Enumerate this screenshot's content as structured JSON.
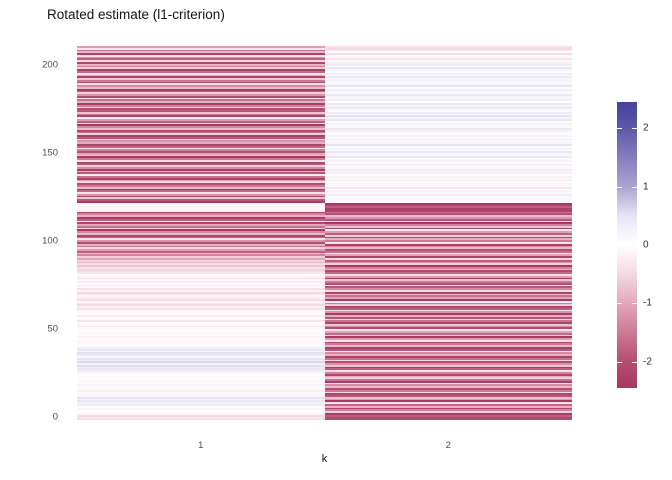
{
  "title": "Rotated estimate (l1-criterion)",
  "x_axis": {
    "label": "k",
    "ticks": [
      "1",
      "2"
    ]
  },
  "y_axis": {
    "ticks": [
      {
        "label": "0",
        "value": 0
      },
      {
        "label": "50",
        "value": 50
      },
      {
        "label": "100",
        "value": 100
      },
      {
        "label": "150",
        "value": 150
      },
      {
        "label": "200",
        "value": 200
      }
    ]
  },
  "legend": {
    "ticks": [
      {
        "label": "2",
        "value": 2
      },
      {
        "label": "1",
        "value": 1
      },
      {
        "label": "0",
        "value": 0
      },
      {
        "label": "-1",
        "value": -1
      },
      {
        "label": "-2",
        "value": -2
      }
    ],
    "domain": [
      -2.45,
      2.45
    ]
  },
  "color_scale": {
    "anchors": [
      {
        "value": -2.45,
        "color": "#A63663"
      },
      {
        "value": -2.0,
        "color": "#B44E72"
      },
      {
        "value": -1.0,
        "color": "#E2A6BA"
      },
      {
        "value": -0.5,
        "color": "#F4D9E2"
      },
      {
        "value": 0.0,
        "color": "#FFFFFF"
      },
      {
        "value": 0.5,
        "color": "#E6E4F4"
      },
      {
        "value": 1.0,
        "color": "#ACA3D1"
      },
      {
        "value": 2.0,
        "color": "#5F58A9"
      },
      {
        "value": 2.45,
        "color": "#45419B"
      }
    ]
  },
  "chart_data": {
    "type": "heatmap",
    "title": "Rotated estimate (l1-criterion)",
    "xlabel": "k",
    "ylabel": "",
    "categories_x": [
      "1",
      "2"
    ],
    "n_rows": 210,
    "ylim": [
      0,
      210
    ],
    "grid": false,
    "legend_position": "right",
    "colorbar": {
      "min": -2.45,
      "max": 2.45,
      "ticks": [
        -2,
        -1,
        0,
        1,
        2
      ]
    },
    "series": [
      {
        "name": "k=1",
        "values_bottom_to_top": [
          -0.45,
          -0.3,
          -0.5,
          -0.15,
          -0.05,
          0.1,
          -0.2,
          0.05,
          0.35,
          0.3,
          0.45,
          0.2,
          0.5,
          0.15,
          -0.1,
          0.05,
          -0.25,
          0.1,
          -0.05,
          0.2,
          0.05,
          -0.15,
          0.1,
          -0.05,
          0.15,
          0.02,
          -0.1,
          0.3,
          0.45,
          0.35,
          0.55,
          0.25,
          0.6,
          0.3,
          0.5,
          0.15,
          0.4,
          0.55,
          0.2,
          0.45,
          0.3,
          0.1,
          -0.05,
          0.15,
          -0.1,
          0.05,
          -0.2,
          0.02,
          -0.12,
          0.08,
          -0.05,
          0.12,
          -0.3,
          -0.15,
          0.05,
          -0.35,
          -0.1,
          0.08,
          -0.25,
          -0.05,
          0.1,
          -0.15,
          -0.4,
          -0.2,
          -0.5,
          -0.3,
          -0.15,
          -0.45,
          -0.25,
          -0.1,
          -0.35,
          -0.5,
          -0.2,
          -0.4,
          -0.1,
          -0.3,
          -0.05,
          -0.25,
          -0.15,
          -0.4,
          -0.2,
          -0.05,
          -0.3,
          -0.5,
          -0.6,
          -0.35,
          -0.7,
          -0.45,
          -0.8,
          -0.55,
          -1.0,
          -0.6,
          -1.4,
          -0.8,
          -1.8,
          -1.1,
          -0.5,
          -1.5,
          -0.9,
          -2.0,
          -1.2,
          -0.4,
          -1.7,
          -2.2,
          -0.8,
          -1.3,
          -2.4,
          -0.6,
          -1.6,
          -1.0,
          -2.1,
          -0.3,
          -1.8,
          -2.3,
          -0.9,
          -1.4,
          -2.2,
          -0.2,
          -0.1,
          -0.15,
          -0.05,
          -0.1,
          -2.3,
          -1.9,
          -0.7,
          -2.1,
          -1.2,
          -0.4,
          -1.7,
          -2.4,
          -0.8,
          -1.5,
          -2.0,
          -0.5,
          -1.1,
          -2.2,
          -1.6,
          -0.3,
          -1.9,
          -0.9,
          -2.3,
          -1.3,
          -0.6,
          -1.8,
          -2.1,
          -0.4,
          -1.5,
          -2.4,
          -0.7,
          -1.0,
          -2.0,
          -1.4,
          -0.3,
          -1.7,
          -2.2,
          -0.9,
          -1.2,
          -0.5,
          -1.9,
          -2.3,
          -0.6,
          -1.6,
          -2.1,
          -0.8,
          -1.3,
          -2.4,
          -0.4,
          -1.8,
          -1.1,
          -0.2,
          -2.2,
          -1.5,
          -0.7,
          -1.9,
          -2.0,
          -0.5,
          -1.4,
          -2.3,
          -0.9,
          -1.6,
          -0.3,
          -2.1,
          -1.2,
          -0.6,
          -1.8,
          -2.4,
          -0.8,
          -1.3,
          -0.4,
          -2.0,
          -1.5,
          -0.7,
          -2.2,
          -1.0,
          -0.3,
          -1.7,
          -2.3,
          -0.6,
          -1.4,
          -0.9,
          -2.1,
          -0.5,
          -1.8,
          -1.2,
          -0.4,
          -2.2,
          -0.8,
          -1.6,
          -0.3,
          -1.1
        ]
      },
      {
        "name": "k=2",
        "values_bottom_to_top": [
          -2.0,
          -2.2,
          -1.8,
          -2.3,
          -0.6,
          -1.4,
          -2.1,
          -0.9,
          -1.7,
          -0.4,
          -2.4,
          -1.1,
          -0.7,
          -1.9,
          -2.2,
          -0.5,
          -1.5,
          -2.0,
          -0.8,
          -1.3,
          -0.3,
          -2.3,
          -1.6,
          -0.6,
          -1.0,
          -2.1,
          -1.4,
          -0.4,
          -1.8,
          -2.4,
          -0.7,
          -1.2,
          -2.0,
          -0.5,
          -1.6,
          -2.2,
          -0.9,
          -1.3,
          -0.2,
          -1.9,
          -2.3,
          -0.8,
          -1.5,
          -2.1,
          -0.4,
          -1.1,
          -2.4,
          -0.6,
          -1.7,
          -1.0,
          -0.3,
          -2.0,
          -1.3,
          -0.7,
          -2.2,
          -1.6,
          -0.5,
          -1.9,
          -0.9,
          -2.3,
          -1.2,
          -0.4,
          -1.8,
          -2.1,
          -0.6,
          -1.4,
          -0.2,
          -2.4,
          -1.0,
          -1.6,
          -0.8,
          -2.2,
          -0.5,
          -1.3,
          -1.9,
          -0.3,
          -2.0,
          -1.5,
          -0.7,
          -2.3,
          -1.1,
          -0.4,
          -1.7,
          -2.1,
          -0.9,
          -1.4,
          -2.4,
          -0.6,
          -1.2,
          -1.8,
          -0.5,
          -2.2,
          -1.0,
          -0.3,
          -1.6,
          -2.0,
          -0.8,
          -1.3,
          -2.3,
          -0.4,
          -1.5,
          -0.9,
          -2.1,
          -0.6,
          -1.8,
          -1.1,
          -0.2,
          -2.2,
          -0.7,
          -1.4,
          -2.4,
          -0.5,
          -1.9,
          -1.2,
          -0.8,
          -2.0,
          -1.6,
          -2.2,
          -2.3,
          -1.8,
          -2.1,
          -2.4,
          0.05,
          -0.1,
          0.15,
          -0.05,
          0.3,
          0.1,
          -0.2,
          0.05,
          -0.35,
          0.1,
          -0.15,
          0.05,
          -0.3,
          -0.1,
          0.2,
          -0.05,
          -0.25,
          0.1,
          0.3,
          -0.1,
          0.15,
          -0.3,
          0.05,
          0.25,
          -0.05,
          0.4,
          0.1,
          -0.15,
          0.45,
          0.15,
          0.3,
          0.05,
          0.5,
          0.2,
          -0.1,
          0.35,
          0.1,
          0.25,
          -0.05,
          0.15,
          -0.2,
          0.4,
          0.1,
          -0.1,
          0.3,
          0.05,
          0.45,
          0.2,
          0.5,
          0.1,
          0.35,
          -0.05,
          0.25,
          0.55,
          0.15,
          0.4,
          0.05,
          0.3,
          -0.1,
          0.2,
          0.45,
          0.1,
          -0.2,
          0.3,
          0.05,
          0.5,
          0.15,
          -0.05,
          0.25,
          -0.15,
          0.4,
          0.1,
          0.3,
          -0.05,
          0.2,
          0.45,
          0.05,
          0.35,
          -0.2,
          0.1,
          -0.35,
          0.15,
          -0.1,
          -0.45,
          0.05,
          -0.3,
          -0.5,
          -0.4
        ]
      }
    ]
  }
}
